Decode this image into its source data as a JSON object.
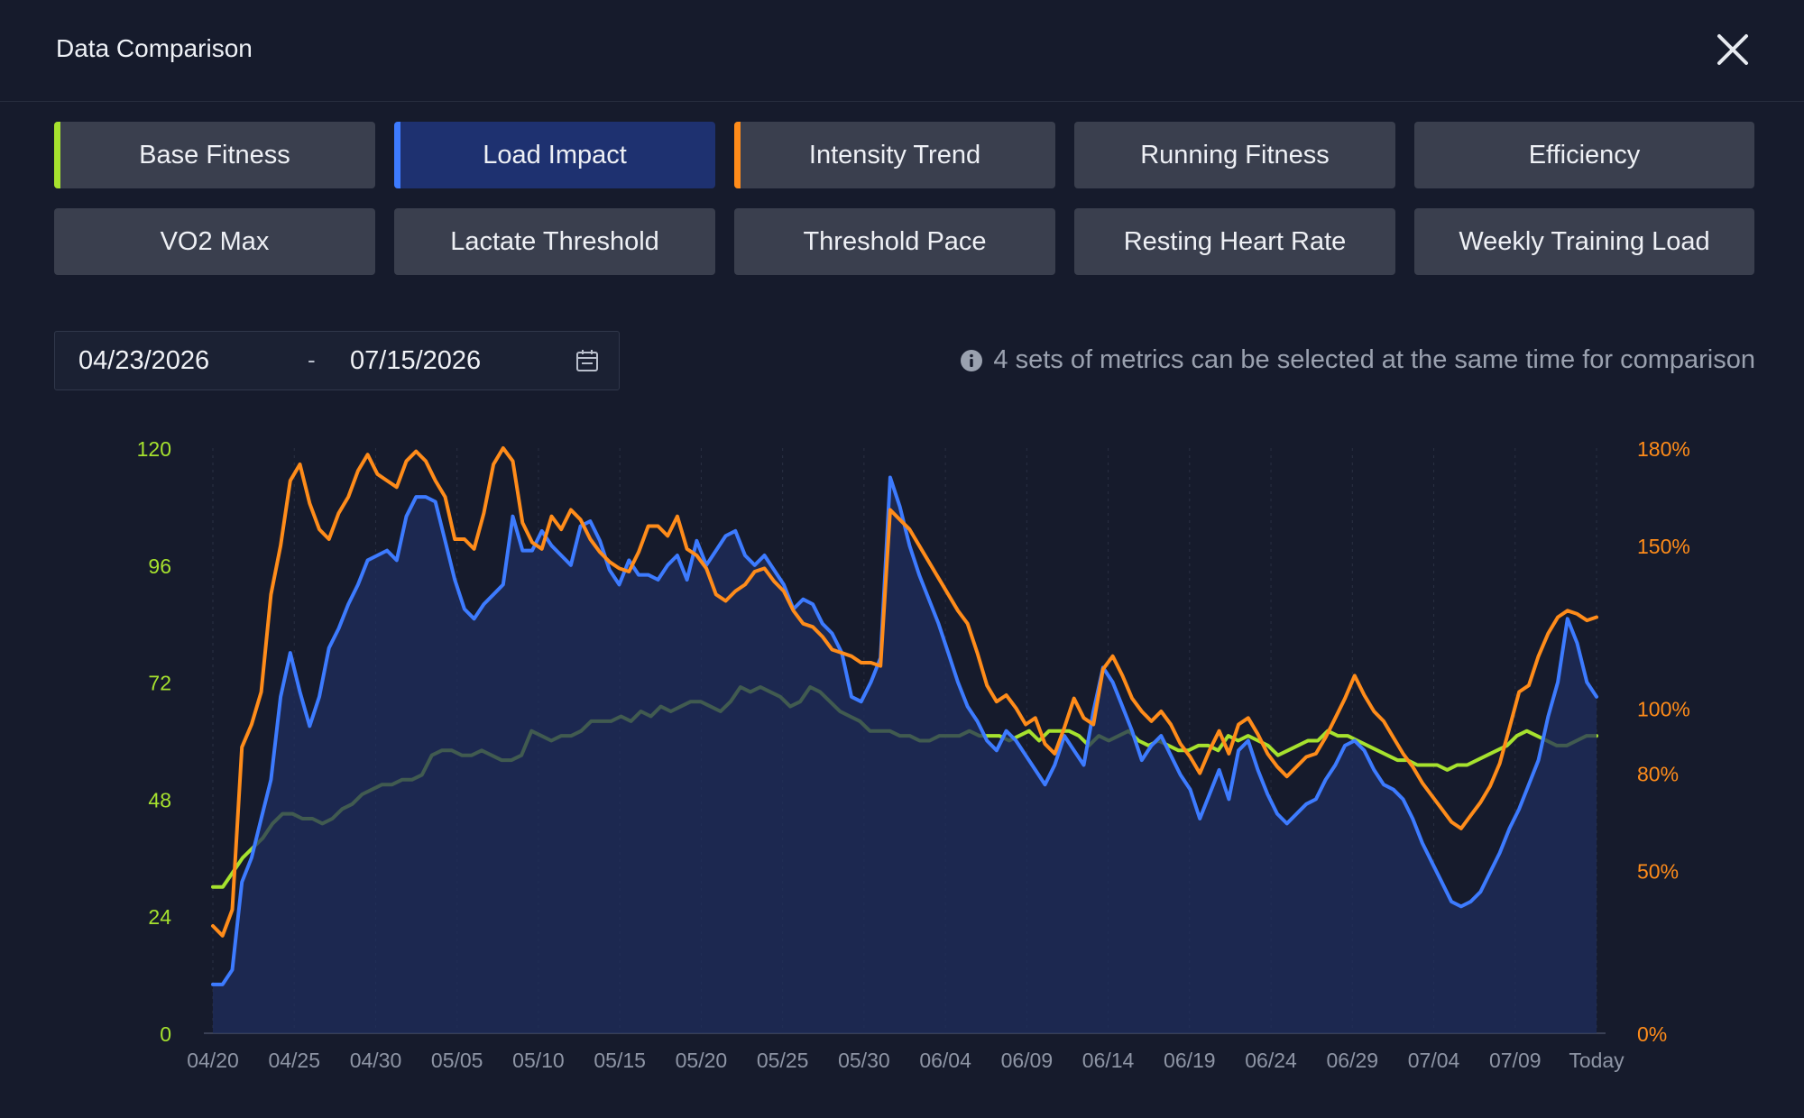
{
  "header": {
    "title": "Data Comparison"
  },
  "metrics": [
    {
      "label": "Base Fitness",
      "accent": "#a6e22e",
      "selected": false
    },
    {
      "label": "Load Impact",
      "accent": "#3d7bff",
      "selected": true
    },
    {
      "label": "Intensity Trend",
      "accent": "#ff8c1a",
      "selected": false
    },
    {
      "label": "Running Fitness",
      "accent": "",
      "selected": false
    },
    {
      "label": "Efficiency",
      "accent": "",
      "selected": false
    },
    {
      "label": "VO2 Max",
      "accent": "",
      "selected": false
    },
    {
      "label": "Lactate Threshold",
      "accent": "",
      "selected": false
    },
    {
      "label": "Threshold Pace",
      "accent": "",
      "selected": false
    },
    {
      "label": "Resting Heart Rate",
      "accent": "",
      "selected": false
    },
    {
      "label": "Weekly Training Load",
      "accent": "",
      "selected": false
    }
  ],
  "date_range": {
    "start": "04/23/2026",
    "separator": "-",
    "end": "07/15/2026"
  },
  "info_text": "4 sets of metrics can be selected at the same time for comparison",
  "chart_data": {
    "type": "line",
    "x_ticks": [
      "04/20",
      "04/25",
      "04/30",
      "05/05",
      "05/10",
      "05/15",
      "05/20",
      "05/25",
      "05/30",
      "06/04",
      "06/09",
      "06/14",
      "06/19",
      "06/24",
      "06/29",
      "07/04",
      "07/09",
      "Today"
    ],
    "y_left_ticks": [
      "0",
      "24",
      "48",
      "72",
      "96",
      "120"
    ],
    "y_right_ticks": [
      "0%",
      "50%",
      "80%",
      "100%",
      "150%",
      "180%"
    ],
    "ylim_left": [
      0,
      120
    ],
    "ylim_right": [
      0,
      180
    ],
    "colors": {
      "left_axis": "#a6e22e",
      "right_axis": "#ff8c1a"
    },
    "series": [
      {
        "color": "#a6e22e",
        "axis": "left",
        "values": [
          30,
          30,
          33,
          36,
          38,
          40,
          43,
          45,
          45,
          44,
          44,
          43,
          44,
          46,
          47,
          49,
          50,
          51,
          51,
          52,
          52,
          53,
          57,
          58,
          58,
          57,
          57,
          58,
          57,
          56,
          56,
          57,
          62,
          61,
          60,
          61,
          61,
          62,
          64,
          64,
          64,
          65,
          64,
          66,
          65,
          67,
          66,
          67,
          68,
          68,
          67,
          66,
          68,
          71,
          70,
          71,
          70,
          69,
          67,
          68,
          71,
          70,
          68,
          66,
          65,
          64,
          62,
          62,
          62,
          61,
          61,
          60,
          60,
          61,
          61,
          61,
          62,
          61,
          61,
          61,
          60,
          61,
          62,
          60,
          62,
          62,
          62,
          61,
          59,
          61,
          60,
          61,
          62,
          60,
          59,
          60,
          59,
          58,
          58,
          59,
          59,
          58,
          61,
          60,
          61,
          60,
          59,
          57,
          58,
          59,
          60,
          60,
          62,
          61,
          61,
          60,
          59,
          58,
          57,
          56,
          56,
          55,
          55,
          55,
          54,
          55,
          55,
          56,
          57,
          58,
          59,
          61,
          62,
          61,
          60,
          59,
          59,
          60,
          61,
          61
        ]
      },
      {
        "color": "#3d7bff",
        "axis": "left",
        "values": [
          10,
          10,
          13,
          31,
          36,
          44,
          52,
          69,
          78,
          70,
          63,
          69,
          79,
          83,
          88,
          92,
          97,
          98,
          99,
          97,
          106,
          110,
          110,
          109,
          101,
          93,
          87,
          85,
          88,
          90,
          92,
          106,
          99,
          99,
          103,
          100,
          98,
          96,
          104,
          105,
          101,
          95,
          92,
          97,
          94,
          94,
          93,
          96,
          98,
          93,
          101,
          96,
          99,
          102,
          103,
          98,
          96,
          98,
          95,
          92,
          87,
          89,
          88,
          84,
          82,
          78,
          69,
          68,
          72,
          77,
          114,
          108,
          100,
          94,
          89,
          84,
          78,
          72,
          67,
          64,
          60,
          58,
          62,
          60,
          57,
          54,
          51,
          55,
          61,
          58,
          55,
          66,
          75,
          72,
          67,
          62,
          56,
          59,
          61,
          57,
          53,
          50,
          44,
          49,
          54,
          48,
          58,
          60,
          54,
          49,
          45,
          43,
          45,
          47,
          48,
          52,
          55,
          59,
          60,
          58,
          54,
          51,
          50,
          48,
          44,
          39,
          35,
          31,
          27,
          26,
          27,
          29,
          33,
          37,
          42,
          46,
          51,
          56,
          65,
          72,
          85,
          80,
          72,
          69
        ]
      },
      {
        "color": "#ff8c1a",
        "axis": "right",
        "values": [
          33,
          30,
          38,
          88,
          95,
          105,
          135,
          150,
          170,
          175,
          163,
          155,
          152,
          160,
          165,
          173,
          178,
          172,
          170,
          168,
          176,
          179,
          176,
          170,
          165,
          152,
          152,
          149,
          160,
          175,
          180,
          176,
          157,
          151,
          149,
          159,
          155,
          161,
          158,
          152,
          148,
          145,
          143,
          142,
          148,
          156,
          156,
          153,
          159,
          149,
          147,
          143,
          135,
          133,
          136,
          138,
          142,
          143,
          139,
          136,
          130,
          126,
          125,
          122,
          118,
          117,
          116,
          114,
          114,
          113,
          161,
          158,
          155,
          150,
          145,
          140,
          135,
          130,
          126,
          117,
          107,
          102,
          104,
          100,
          95,
          97,
          89,
          86,
          94,
          103,
          97,
          95,
          112,
          116,
          110,
          103,
          99,
          96,
          99,
          95,
          89,
          85,
          80,
          87,
          93,
          86,
          95,
          97,
          92,
          86,
          82,
          79,
          82,
          85,
          86,
          91,
          97,
          103,
          110,
          104,
          99,
          96,
          91,
          86,
          82,
          77,
          73,
          69,
          65,
          63,
          67,
          71,
          76,
          83,
          94,
          105,
          107,
          116,
          123,
          128,
          130,
          129,
          127,
          128
        ]
      }
    ]
  }
}
